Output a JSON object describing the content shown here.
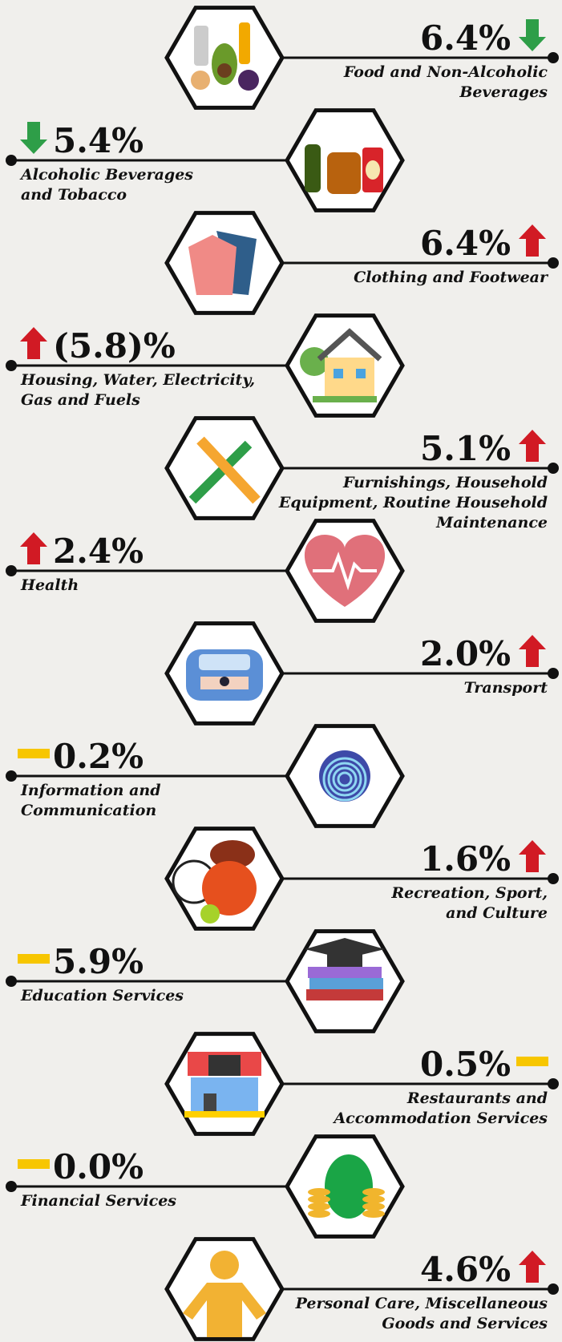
{
  "items": [
    {
      "value_label": "6.4%",
      "trend": "down",
      "label": [
        "Food and Non-Alcoholic",
        "Beverages"
      ]
    },
    {
      "value_label": "5.4%",
      "trend": "down",
      "label": [
        "Alcoholic Beverages",
        "and Tobacco"
      ]
    },
    {
      "value_label": "6.4%",
      "trend": "up",
      "label": [
        "Clothing and Footwear"
      ]
    },
    {
      "value_label": "(5.8)%",
      "trend": "up",
      "label": [
        "Housing, Water, Electricity,",
        "Gas and Fuels"
      ]
    },
    {
      "value_label": "5.1%",
      "trend": "up",
      "label": [
        "Furnishings, Household",
        "Equipment, Routine Household",
        "Maintenance"
      ]
    },
    {
      "value_label": "2.4%",
      "trend": "up",
      "label": [
        "Health"
      ]
    },
    {
      "value_label": "2.0%",
      "trend": "up",
      "label": [
        "Transport"
      ]
    },
    {
      "value_label": "0.2%",
      "trend": "flat",
      "label": [
        "Information and",
        "Communication"
      ]
    },
    {
      "value_label": "1.6%",
      "trend": "up",
      "label": [
        "Recreation, Sport,",
        "and Culture"
      ]
    },
    {
      "value_label": "5.9%",
      "trend": "flat",
      "label": [
        "Education Services"
      ]
    },
    {
      "value_label": "0.5%",
      "trend": "flat",
      "label": [
        "Restaurants and",
        "Accommodation Services"
      ]
    },
    {
      "value_label": "0.0%",
      "trend": "flat",
      "label": [
        "Financial Services"
      ]
    },
    {
      "value_label": "4.6%",
      "trend": "up",
      "label": [
        "Personal Care, Miscellaneous",
        "Goods and Services"
      ]
    }
  ]
}
